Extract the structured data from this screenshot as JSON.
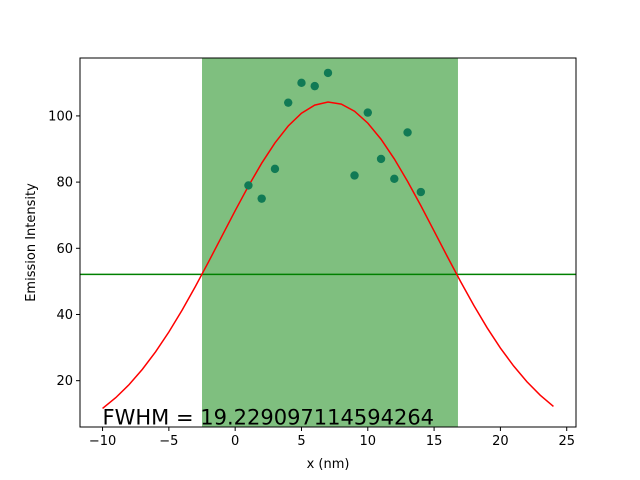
{
  "chart_data": {
    "type": "scatter",
    "title": "",
    "xlabel": "x (nm)",
    "ylabel": "Emission Intensity",
    "xlim": [
      -11.7,
      25.7
    ],
    "ylim": [
      6.0,
      117.5
    ],
    "x_ticks": [
      -10,
      -5,
      0,
      5,
      10,
      15,
      20,
      25
    ],
    "y_ticks": [
      20,
      40,
      60,
      80,
      100
    ],
    "grid": false,
    "series": [
      {
        "kind": "scatter",
        "color": "#117a55",
        "points": [
          [
            1,
            79
          ],
          [
            2,
            75
          ],
          [
            3,
            84
          ],
          [
            4,
            104
          ],
          [
            5,
            110
          ],
          [
            6,
            109
          ],
          [
            7,
            113
          ],
          [
            9,
            82
          ],
          [
            10,
            101
          ],
          [
            11,
            87
          ],
          [
            12,
            81
          ],
          [
            13,
            95
          ],
          [
            14,
            77
          ]
        ]
      },
      {
        "kind": "line",
        "color": "#ff0000",
        "gaussian_fit": {
          "amplitude": 104.2,
          "center": 7.1,
          "sigma": 8.16
        },
        "x_range": [
          -10,
          24
        ]
      },
      {
        "kind": "hline",
        "color": "#008000",
        "y": 52.1
      }
    ],
    "shaded_band": {
      "x": [
        -2.5,
        16.8
      ],
      "color": "#008000",
      "opacity": 0.5
    },
    "annotation": {
      "text": "FWHM = 19.229097114594264",
      "x": -10,
      "y": 8.5
    }
  }
}
